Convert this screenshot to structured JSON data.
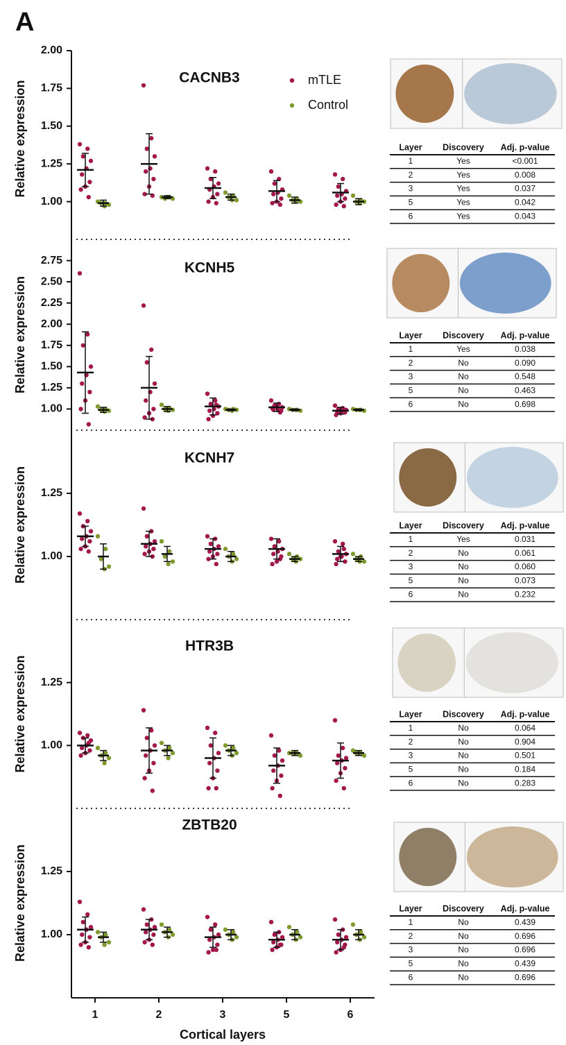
{
  "panel_label": "A",
  "chart_data": [
    {
      "type": "dot",
      "title": "CACNB3",
      "ylabel": "Relative expression",
      "ylim": [
        0.75,
        2.0
      ],
      "yticks": [
        {
          "value": 1,
          "label": "1.00"
        },
        {
          "value": 1.25,
          "label": "1.25"
        },
        {
          "value": 1.5,
          "label": "1.50"
        },
        {
          "value": 1.75,
          "label": "1.75"
        },
        {
          "value": 2,
          "label": "2.00"
        }
      ],
      "series": [
        {
          "name": "mTLE",
          "color": "#a3174b",
          "mean": [
            1.21,
            1.25,
            1.09,
            1.07,
            1.06
          ],
          "sd": [
            0.11,
            0.2,
            0.07,
            0.07,
            0.06
          ],
          "points": [
            [
              1.38,
              1.35,
              1.3,
              1.27,
              1.22,
              1.18,
              1.13,
              1.1,
              1.08,
              1.03
            ],
            [
              1.77,
              1.42,
              1.35,
              1.3,
              1.22,
              1.2,
              1.15,
              1.1,
              1.05,
              1.04
            ],
            [
              1.22,
              1.2,
              1.15,
              1.12,
              1.1,
              1.08,
              1.05,
              1.03,
              1.0,
              0.99
            ],
            [
              1.2,
              1.15,
              1.12,
              1.08,
              1.06,
              1.05,
              1.02,
              1.0,
              0.99,
              0.98
            ],
            [
              1.18,
              1.15,
              1.1,
              1.07,
              1.05,
              1.04,
              1.02,
              1.0,
              0.98,
              0.97
            ]
          ]
        },
        {
          "name": "Control",
          "color": "#7f9a2d",
          "mean": [
            0.99,
            1.03,
            1.03,
            1.01,
            1.0
          ],
          "sd": [
            0.02,
            0.01,
            0.02,
            0.02,
            0.02
          ],
          "points": [
            [
              1.0,
              0.99,
              0.99,
              0.98,
              0.97
            ],
            [
              1.03,
              1.03,
              1.02,
              1.02,
              1.03
            ],
            [
              1.06,
              1.04,
              1.03,
              1.01,
              1.01
            ],
            [
              1.04,
              1.02,
              1.01,
              1.0,
              1.0
            ],
            [
              1.04,
              1.01,
              1.0,
              1.0,
              0.99
            ]
          ]
        }
      ]
    },
    {
      "type": "dot",
      "title": "KCNH5",
      "ylabel": "Relative expression",
      "ylim": [
        0.75,
        3.0
      ],
      "yticks": [
        {
          "value": 1,
          "label": "1.00"
        },
        {
          "value": 1.25,
          "label": "1.25"
        },
        {
          "value": 1.5,
          "label": "1.50"
        },
        {
          "value": 1.75,
          "label": "1.75"
        },
        {
          "value": 2,
          "label": "2.00"
        },
        {
          "value": 2.25,
          "label": "2.25"
        },
        {
          "value": 2.5,
          "label": "2.50"
        },
        {
          "value": 2.75,
          "label": "2.75"
        }
      ],
      "series": [
        {
          "color": "#a3174b",
          "mean": [
            1.43,
            1.25,
            1.03,
            1.02,
            0.98
          ],
          "sd": [
            0.48,
            0.37,
            0.1,
            0.05,
            0.04
          ],
          "points": [
            [
              2.6,
              1.88,
              1.75,
              1.5,
              1.4,
              1.3,
              1.2,
              1.1,
              1.0,
              0.82
            ],
            [
              2.22,
              1.7,
              1.55,
              1.3,
              1.2,
              1.1,
              1.0,
              0.95,
              0.9,
              0.88
            ],
            [
              1.18,
              1.1,
              1.06,
              1.03,
              1.0,
              0.98,
              0.95,
              0.92,
              0.88,
              1.05
            ],
            [
              1.1,
              1.06,
              1.04,
              1.02,
              1.0,
              0.99,
              0.98,
              1.03,
              1.01,
              0.96
            ],
            [
              1.04,
              1.01,
              1.0,
              0.99,
              0.98,
              0.97,
              0.96,
              0.95,
              0.93,
              0.98
            ]
          ]
        },
        {
          "color": "#7f9a2d",
          "mean": [
            0.99,
            1.0,
            0.99,
            0.99,
            0.99
          ],
          "sd": [
            0.03,
            0.03,
            0.01,
            0.01,
            0.01
          ],
          "points": [
            [
              1.03,
              1.0,
              0.99,
              0.98,
              0.97
            ],
            [
              1.05,
              1.01,
              1.0,
              0.99,
              0.98
            ],
            [
              1.0,
              1.0,
              0.99,
              0.99,
              0.98
            ],
            [
              1.0,
              0.99,
              0.99,
              0.98,
              0.99
            ],
            [
              1.0,
              0.99,
              0.99,
              0.98,
              0.99
            ]
          ]
        }
      ]
    },
    {
      "type": "dot",
      "title": "KCNH7",
      "ylabel": "Relative expression",
      "ylim": [
        0.75,
        1.5
      ],
      "yticks": [
        {
          "value": 1,
          "label": "1.00"
        },
        {
          "value": 1.25,
          "label": "1.25"
        }
      ],
      "series": [
        {
          "color": "#a3174b",
          "mean": [
            1.08,
            1.05,
            1.03,
            1.03,
            1.01
          ],
          "sd": [
            0.04,
            0.05,
            0.04,
            0.04,
            0.03
          ],
          "points": [
            [
              1.17,
              1.14,
              1.12,
              1.1,
              1.08,
              1.07,
              1.06,
              1.04,
              1.03,
              1.02
            ],
            [
              1.19,
              1.1,
              1.08,
              1.06,
              1.05,
              1.04,
              1.03,
              1.02,
              1.01,
              1.0
            ],
            [
              1.08,
              1.07,
              1.05,
              1.04,
              1.03,
              1.02,
              1.01,
              1.0,
              0.99,
              0.97
            ],
            [
              1.07,
              1.06,
              1.04,
              1.03,
              1.02,
              1.01,
              1.0,
              0.98,
              0.97,
              0.99
            ],
            [
              1.06,
              1.05,
              1.02,
              1.01,
              1.0,
              0.99,
              0.98,
              1.0,
              0.97,
              1.03
            ]
          ]
        },
        {
          "color": "#7f9a2d",
          "mean": [
            1.0,
            1.01,
            1.0,
            0.99,
            0.99
          ],
          "sd": [
            0.05,
            0.03,
            0.02,
            0.01,
            0.01
          ],
          "points": [
            [
              1.08,
              1.03,
              0.99,
              0.96,
              0.95
            ],
            [
              1.06,
              1.02,
              1.0,
              0.98,
              0.97
            ],
            [
              1.03,
              1.01,
              1.0,
              0.99,
              0.98
            ],
            [
              1.01,
              1.0,
              0.99,
              0.99,
              0.98
            ],
            [
              1.01,
              1.0,
              0.99,
              0.98,
              0.98
            ]
          ]
        }
      ]
    },
    {
      "type": "dot",
      "title": "HTR3B",
      "ylabel": "Relative expression",
      "ylim": [
        0.75,
        1.5
      ],
      "yticks": [
        {
          "value": 1,
          "label": "1.00"
        },
        {
          "value": 1.25,
          "label": "1.25"
        }
      ],
      "series": [
        {
          "color": "#a3174b",
          "mean": [
            1.0,
            0.98,
            0.95,
            0.92,
            0.94
          ],
          "sd": [
            0.03,
            0.09,
            0.08,
            0.07,
            0.07
          ],
          "points": [
            [
              1.05,
              1.04,
              1.03,
              1.02,
              1.0,
              0.99,
              0.98,
              0.97,
              0.96,
              1.01
            ],
            [
              1.14,
              1.06,
              1.03,
              1.0,
              0.98,
              0.96,
              0.93,
              0.9,
              0.87,
              0.82
            ],
            [
              1.07,
              1.05,
              1.0,
              0.97,
              0.95,
              0.93,
              0.9,
              0.87,
              0.83,
              0.83
            ],
            [
              1.04,
              0.98,
              0.96,
              0.94,
              0.92,
              0.9,
              0.88,
              0.86,
              0.83,
              0.8
            ],
            [
              1.1,
              0.99,
              0.96,
              0.95,
              0.94,
              0.93,
              0.91,
              0.89,
              0.86,
              0.83
            ]
          ]
        },
        {
          "color": "#7f9a2d",
          "mean": [
            0.96,
            0.98,
            0.98,
            0.97,
            0.97
          ],
          "sd": [
            0.02,
            0.02,
            0.02,
            0.01,
            0.01
          ],
          "points": [
            [
              0.99,
              0.97,
              0.96,
              0.95,
              0.93
            ],
            [
              1.01,
              0.99,
              0.98,
              0.97,
              0.95
            ],
            [
              1.0,
              0.99,
              0.98,
              0.97,
              0.96
            ],
            [
              0.97,
              0.97,
              0.97,
              0.96,
              0.97
            ],
            [
              0.98,
              0.97,
              0.97,
              0.96,
              0.97
            ]
          ]
        }
      ]
    },
    {
      "type": "dot",
      "title": "ZBTB20",
      "ylabel": "Relative expression",
      "ylim": [
        0.75,
        1.5
      ],
      "yticks": [
        {
          "value": 1,
          "label": "1.00"
        },
        {
          "value": 1.25,
          "label": "1.25"
        }
      ],
      "categories": [
        "1",
        "2",
        "3",
        "5",
        "6"
      ],
      "xlabel": "Cortical layers",
      "series": [
        {
          "color": "#a3174b",
          "mean": [
            1.02,
            1.02,
            0.99,
            0.98,
            0.98
          ],
          "sd": [
            0.05,
            0.04,
            0.04,
            0.03,
            0.04
          ],
          "points": [
            [
              1.13,
              1.08,
              1.05,
              1.03,
              1.02,
              1.0,
              0.99,
              0.97,
              0.96,
              0.95
            ],
            [
              1.1,
              1.06,
              1.04,
              1.03,
              1.02,
              1.01,
              1.0,
              0.98,
              0.97,
              0.96
            ],
            [
              1.07,
              1.04,
              1.02,
              1.0,
              0.99,
              0.98,
              0.96,
              0.94,
              0.93,
              0.94
            ],
            [
              1.05,
              1.01,
              1.0,
              0.99,
              0.98,
              0.97,
              0.96,
              0.95,
              0.94,
              0.96
            ],
            [
              1.06,
              1.02,
              1.0,
              0.99,
              0.98,
              0.97,
              0.96,
              0.94,
              0.93,
              0.95
            ]
          ]
        },
        {
          "color": "#7f9a2d",
          "mean": [
            0.99,
            1.01,
            1.0,
            1.0,
            1.0
          ],
          "sd": [
            0.02,
            0.02,
            0.02,
            0.02,
            0.02
          ],
          "points": [
            [
              1.01,
              1.0,
              0.99,
              0.97,
              0.96
            ],
            [
              1.04,
              1.02,
              1.01,
              1.0,
              0.99
            ],
            [
              1.02,
              1.01,
              1.0,
              0.99,
              0.98
            ],
            [
              1.03,
              1.01,
              1.0,
              0.99,
              0.98
            ],
            [
              1.04,
              1.01,
              1.0,
              0.99,
              0.98
            ]
          ]
        }
      ]
    }
  ],
  "tables": [
    {
      "header": [
        "Layer",
        "Discovery",
        "Adj. p-value"
      ],
      "rows": [
        [
          "1",
          "Yes",
          "<0.001"
        ],
        [
          "2",
          "Yes",
          "0.008"
        ],
        [
          "3",
          "Yes",
          "0.037"
        ],
        [
          "5",
          "Yes",
          "0.042"
        ],
        [
          "6",
          "Yes",
          "0.043"
        ]
      ]
    },
    {
      "header": [
        "Layer",
        "Discovery",
        "Adj. p-value"
      ],
      "rows": [
        [
          "1",
          "Yes",
          "0.038"
        ],
        [
          "2",
          "No",
          "0.090"
        ],
        [
          "3",
          "No",
          "0.548"
        ],
        [
          "5",
          "No",
          "0.463"
        ],
        [
          "6",
          "No",
          "0.698"
        ]
      ]
    },
    {
      "header": [
        "Layer",
        "Discovery",
        "Adj. p-value"
      ],
      "rows": [
        [
          "1",
          "Yes",
          "0.031"
        ],
        [
          "2",
          "No",
          "0.061"
        ],
        [
          "3",
          "No",
          "0.060"
        ],
        [
          "5",
          "No",
          "0.073"
        ],
        [
          "6",
          "No",
          "0.232"
        ]
      ]
    },
    {
      "header": [
        "Layer",
        "Discovery",
        "Adj. p-value"
      ],
      "rows": [
        [
          "1",
          "No",
          "0.064"
        ],
        [
          "2",
          "No",
          "0.904"
        ],
        [
          "3",
          "No",
          "0.501"
        ],
        [
          "5",
          "No",
          "0.184"
        ],
        [
          "6",
          "No",
          "0.283"
        ]
      ]
    },
    {
      "header": [
        "Layer",
        "Discovery",
        "Adj. p-value"
      ],
      "rows": [
        [
          "1",
          "No",
          "0.439"
        ],
        [
          "2",
          "No",
          "0.696"
        ],
        [
          "3",
          "No",
          "0.696"
        ],
        [
          "5",
          "No",
          "0.439"
        ],
        [
          "6",
          "No",
          "0.696"
        ]
      ]
    }
  ]
}
